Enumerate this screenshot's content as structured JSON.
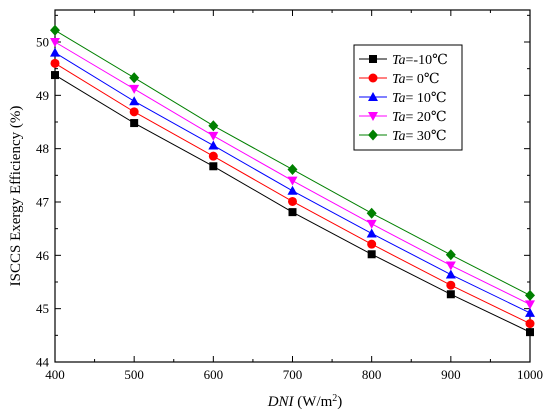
{
  "chart_data": {
    "type": "line",
    "xlabel_italic": "DNI",
    "xlabel_rest": " (W/m",
    "xlabel_sup": "2",
    "xlabel_close": ")",
    "ylabel": "ISCCS Exergy Efficiency (%)",
    "xlim": [
      400,
      1000
    ],
    "ylim": [
      44,
      50.6
    ],
    "xticks": [
      400,
      500,
      600,
      700,
      800,
      900,
      1000
    ],
    "yticks": [
      44,
      45,
      46,
      47,
      48,
      49,
      50
    ],
    "minor_ticks": true,
    "grid": false,
    "legend_position": "top-right",
    "x": [
      400,
      500,
      600,
      700,
      800,
      900,
      1000
    ],
    "series": [
      {
        "legend_prefix": "Ta",
        "legend_value": "=-10℃",
        "marker": "square",
        "color": "#000000",
        "values": [
          49.38,
          48.48,
          47.67,
          46.81,
          46.02,
          45.27,
          44.56
        ]
      },
      {
        "legend_prefix": "Ta",
        "legend_value": "=   0℃",
        "marker": "circle",
        "color": "#ff0000",
        "values": [
          49.6,
          48.69,
          47.86,
          47.01,
          46.21,
          45.44,
          44.72
        ]
      },
      {
        "legend_prefix": "Ta",
        "legend_value": "= 10℃",
        "marker": "triangle-up",
        "color": "#0000ff",
        "values": [
          49.8,
          48.89,
          48.06,
          47.21,
          46.41,
          45.64,
          44.92
        ]
      },
      {
        "legend_prefix": "Ta",
        "legend_value": "= 20℃",
        "marker": "triangle-down",
        "color": "#ff00ff",
        "values": [
          50.0,
          49.12,
          48.24,
          47.4,
          46.59,
          45.81,
          45.08
        ]
      },
      {
        "legend_prefix": "Ta",
        "legend_value": "= 30℃",
        "marker": "diamond",
        "color": "#008000",
        "values": [
          50.22,
          49.33,
          48.43,
          47.61,
          46.79,
          46.01,
          45.25
        ]
      }
    ]
  }
}
